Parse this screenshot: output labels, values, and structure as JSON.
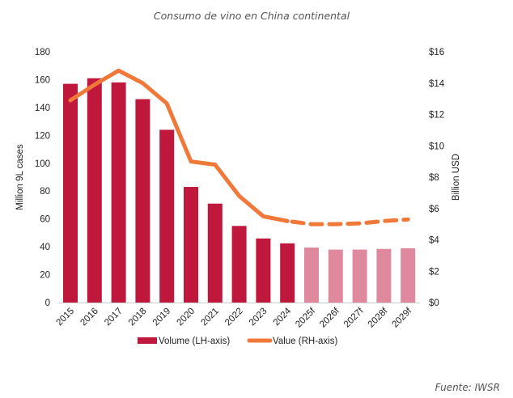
{
  "chart_data": {
    "type": "bar+line",
    "title": "Consumo de vino en China continental",
    "source": "Fuente: IWSR",
    "categories": [
      "2015",
      "2016",
      "2017",
      "2018",
      "2019",
      "2020",
      "2021",
      "2022",
      "2023",
      "2024",
      "2025f",
      "2026f",
      "2027f",
      "2028f",
      "2029f"
    ],
    "forecast_start_index": 10,
    "series": [
      {
        "name": "Volume (LH-axis)",
        "type": "bar",
        "axis": "left",
        "values": [
          157,
          161,
          158,
          146,
          124,
          83,
          71,
          55,
          46,
          42.5,
          39.5,
          38,
          38,
          38.5,
          39
        ]
      },
      {
        "name": "Value (RH-axis)",
        "type": "line",
        "axis": "right",
        "values": [
          12.9,
          13.9,
          14.8,
          14.0,
          12.7,
          9.0,
          8.8,
          6.8,
          5.5,
          5.2,
          5.0,
          5.0,
          5.05,
          5.2,
          5.3
        ]
      }
    ],
    "left_axis": {
      "label": "Million 9L cases",
      "range": [
        0,
        180
      ],
      "ticks": [
        0,
        20,
        40,
        60,
        80,
        100,
        120,
        140,
        160,
        180
      ],
      "tick_labels": [
        "0",
        "20",
        "40",
        "60",
        "80",
        "100",
        "120",
        "140",
        "160",
        "180"
      ]
    },
    "right_axis": {
      "label": "Billion USD",
      "range": [
        0,
        16
      ],
      "ticks": [
        0,
        2,
        4,
        6,
        8,
        10,
        12,
        14,
        16
      ],
      "tick_labels": [
        "$0",
        "$2",
        "$4",
        "$6",
        "$8",
        "$10",
        "$12",
        "$14",
        "$16"
      ]
    },
    "grid": false,
    "legend_position": "bottom",
    "colors": {
      "bar_actual": "#C0183C",
      "bar_forecast": "#E0899E",
      "line": "#F07838",
      "axis": "#d0d0d0",
      "text": "#222222",
      "title": "#555555"
    }
  }
}
